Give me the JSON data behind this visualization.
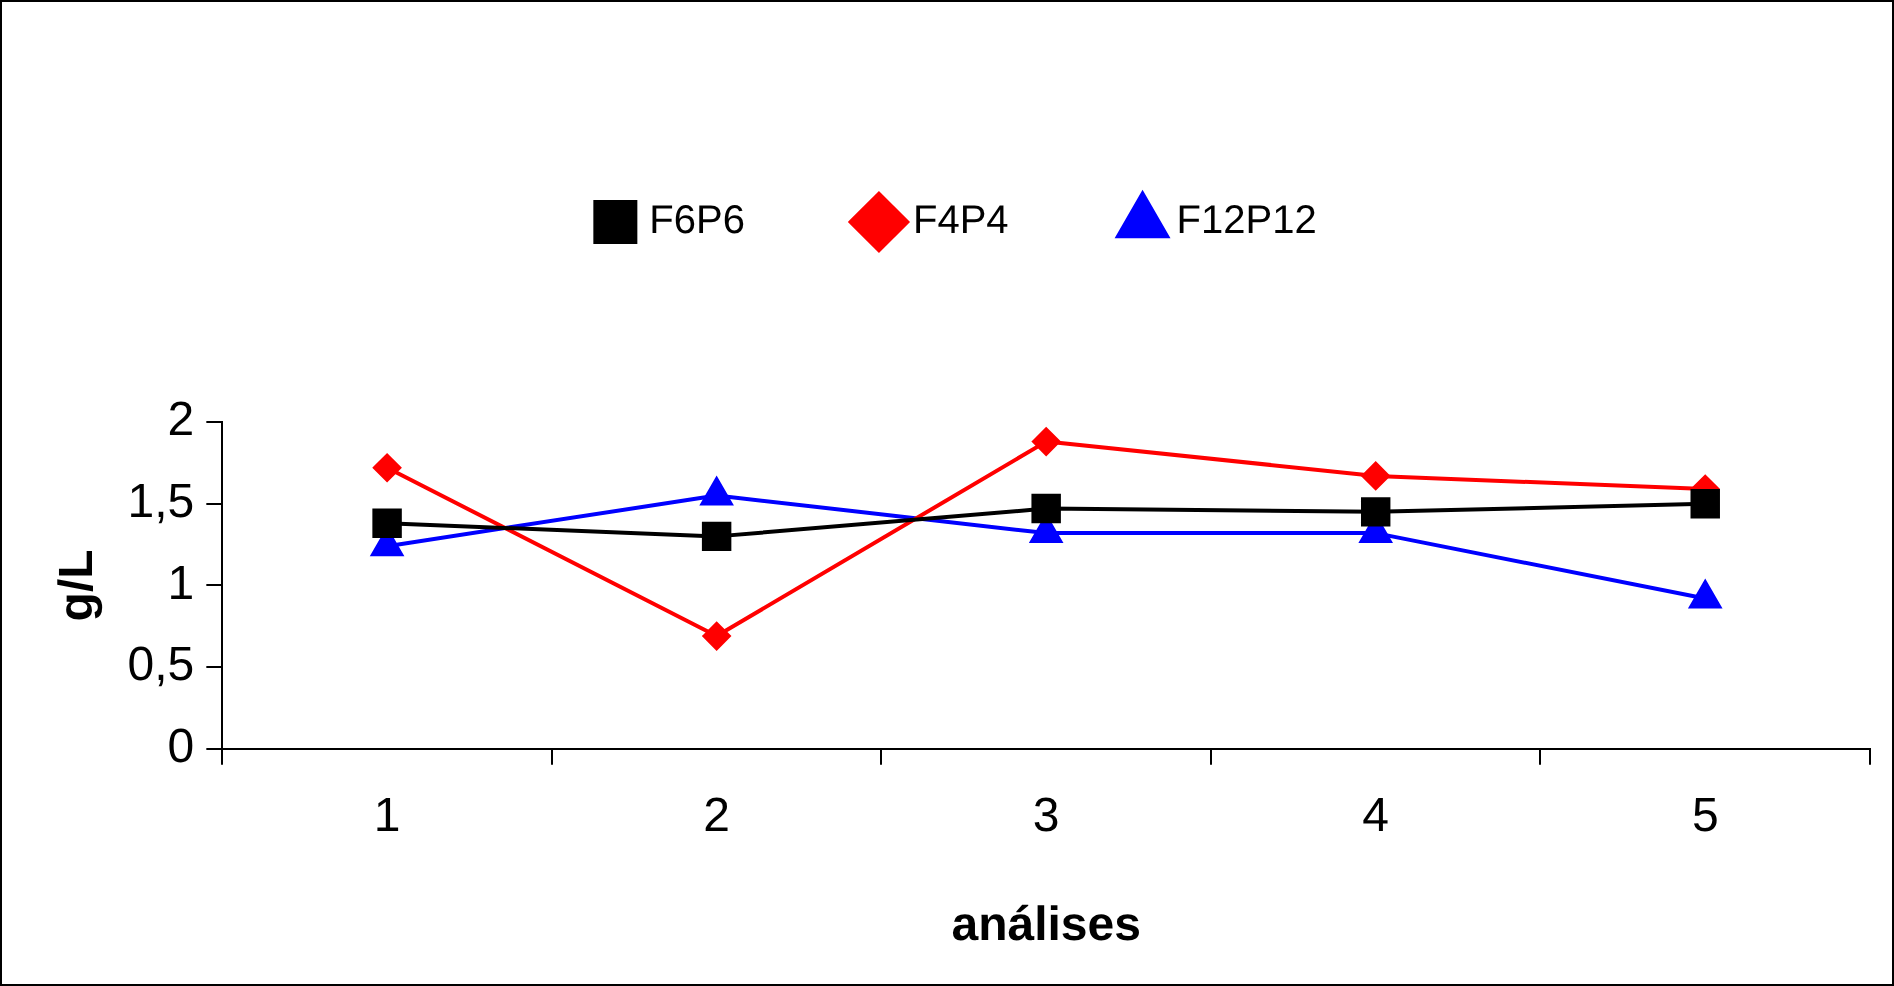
{
  "chart_data": {
    "type": "line",
    "xlabel": "análises",
    "ylabel": "g/L",
    "categories": [
      "1",
      "2",
      "3",
      "4",
      "5"
    ],
    "series": [
      {
        "name": "F6P6",
        "color": "#000000",
        "marker": "square",
        "values": [
          1.38,
          1.3,
          1.47,
          1.45,
          1.5
        ]
      },
      {
        "name": "F4P4",
        "color": "#ff0000",
        "marker": "diamond",
        "values": [
          1.72,
          0.69,
          1.88,
          1.67,
          1.59
        ]
      },
      {
        "name": "F12P12",
        "color": "#0000ff",
        "marker": "triangle",
        "values": [
          1.24,
          1.55,
          1.32,
          1.32,
          0.92
        ]
      }
    ],
    "ylim": [
      0,
      2
    ],
    "yticks": [
      0,
      {
        "value": 0.5,
        "label": "0,5"
      },
      1,
      {
        "value": 1.5,
        "label": "1,5"
      },
      2
    ],
    "grid": false,
    "legend": "top",
    "line_style": "solid"
  }
}
